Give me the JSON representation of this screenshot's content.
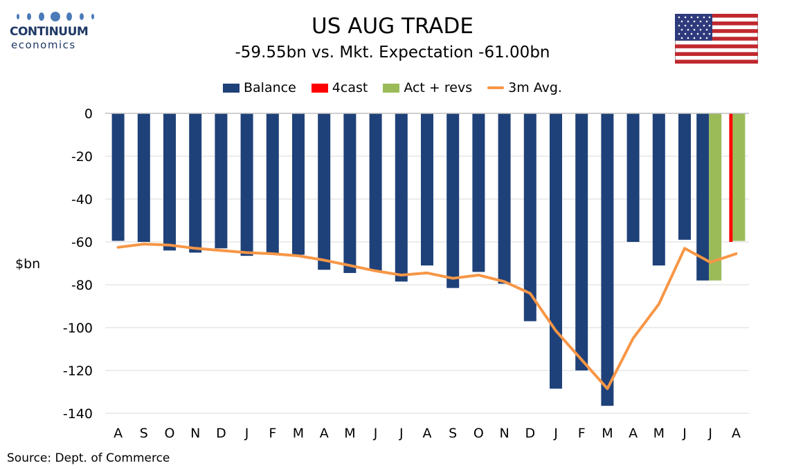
{
  "logo": {
    "brand": "CONTINUUM",
    "sub": "economics"
  },
  "title": "US AUG TRADE",
  "subtitle": "-59.55bn vs. Mkt. Expectation -61.00bn",
  "source": "Source: Dept. of Commerce",
  "colors": {
    "balance": "#1f4179",
    "forecast": "#ff0000",
    "actual": "#9bbb59",
    "avg": "#f79646",
    "grid": "#d9d9d9",
    "brand": "#1f3864"
  },
  "legend": [
    {
      "label": "Balance",
      "type": "bar",
      "color": "#1f4179"
    },
    {
      "label": "4cast",
      "type": "bar",
      "color": "#ff0000"
    },
    {
      "label": "Act + revs",
      "type": "bar",
      "color": "#9bbb59"
    },
    {
      "label": "3m Avg.",
      "type": "line",
      "color": "#f79646"
    }
  ],
  "chart_data": {
    "type": "bar",
    "categories": [
      "A",
      "S",
      "O",
      "N",
      "D",
      "J",
      "F",
      "M",
      "A",
      "M",
      "J",
      "J",
      "A",
      "S",
      "O",
      "N",
      "D",
      "J",
      "F",
      "M",
      "A",
      "M",
      "J",
      "J",
      "A"
    ],
    "series": [
      {
        "name": "Balance",
        "type": "bar",
        "values": [
          -59.5,
          -60,
          -64,
          -65,
          -63,
          -66.5,
          -65.5,
          -66,
          -73,
          -74.5,
          -73.5,
          -78.5,
          -71,
          -81.5,
          -74,
          -79.5,
          -97,
          -128.5,
          -120,
          -136.5,
          -60,
          -71,
          -59,
          -78,
          null
        ]
      },
      {
        "name": "Act + revs",
        "type": "bar",
        "values": [
          null,
          null,
          null,
          null,
          null,
          null,
          null,
          null,
          null,
          null,
          null,
          null,
          null,
          null,
          null,
          null,
          null,
          null,
          null,
          null,
          null,
          null,
          null,
          -78,
          -59.55
        ]
      },
      {
        "name": "4cast",
        "type": "bar",
        "values": [
          null,
          null,
          null,
          null,
          null,
          null,
          null,
          null,
          null,
          null,
          null,
          null,
          null,
          null,
          null,
          null,
          null,
          null,
          null,
          null,
          null,
          null,
          null,
          null,
          -60
        ]
      },
      {
        "name": "3m Avg.",
        "type": "line",
        "values": [
          -62.5,
          -61,
          -61.5,
          -63,
          -64,
          -65,
          -65.5,
          -66.5,
          -68.5,
          -71,
          -73.5,
          -75.5,
          -74.5,
          -77,
          -75.5,
          -78.5,
          -84,
          -101.5,
          -115,
          -128.5,
          -105,
          -89,
          -63,
          -69.5,
          -65.5
        ]
      }
    ],
    "ylabel": "$bn",
    "ylim": [
      -140,
      0
    ],
    "yticks": [
      0,
      -20,
      -40,
      -60,
      -80,
      -100,
      -120,
      -140
    ],
    "ytick_labels": [
      "0",
      "-20",
      "-40",
      "-60",
      "-80",
      "-100",
      "-120",
      "-140"
    ],
    "grid": true,
    "legend_position": "top"
  }
}
